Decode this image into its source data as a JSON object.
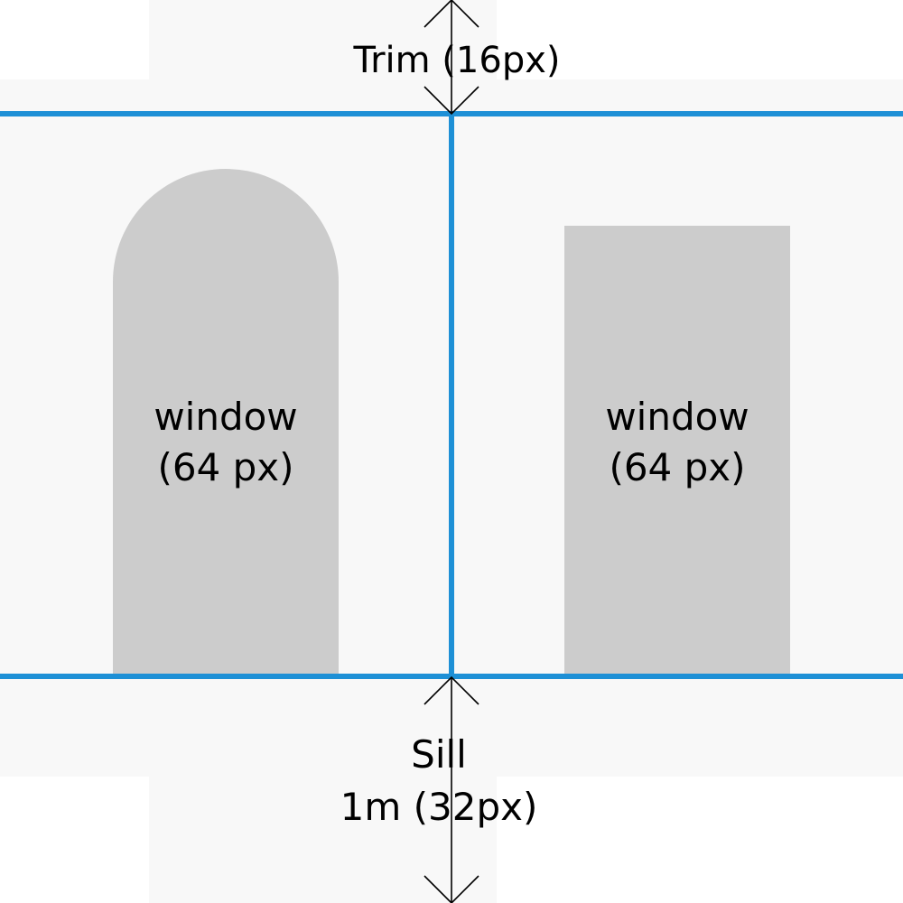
{
  "colors": {
    "page_background": "#ffffff",
    "panel_fill": "#f8f8f8",
    "window_fill": "#cccccc",
    "guide_line": "#1e90d6",
    "text_and_arrows": "#000000"
  },
  "labels": {
    "trim": "Trim (16px)",
    "sill_line1": "Sill",
    "sill_line2": "1m (32px)"
  },
  "windows": [
    {
      "shape": "arched",
      "label_line1": "window",
      "label_line2": "(64 px)"
    },
    {
      "shape": "rectangular",
      "label_line1": "window",
      "label_line2": "(64 px)"
    }
  ]
}
